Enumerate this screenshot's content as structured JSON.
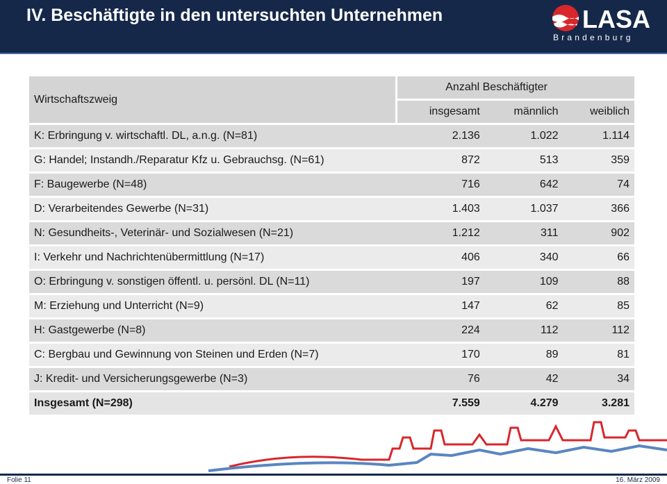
{
  "header": {
    "title": "IV. Beschäftigte in den untersuchten Unternehmen",
    "logo_text": "LASA",
    "logo_subtext": "Brandenburg"
  },
  "table": {
    "row_header": "Wirtschaftszweig",
    "group_header": "Anzahl Beschäftigter",
    "columns": [
      "insgesamt",
      "männlich",
      "weiblich"
    ],
    "rows": [
      [
        "K: Erbringung v. wirtschaftl. DL, a.n.g. (N=81)",
        "2.136",
        "1.022",
        "1.114"
      ],
      [
        "G: Handel; Instandh./Reparatur Kfz u. Gebrauchsg. (N=61)",
        "872",
        "513",
        "359"
      ],
      [
        "F: Baugewerbe (N=48)",
        "716",
        "642",
        "74"
      ],
      [
        "D: Verarbeitendes Gewerbe (N=31)",
        "1.403",
        "1.037",
        "366"
      ],
      [
        "N: Gesundheits-, Veterinär- und Sozialwesen (N=21)",
        "1.212",
        "311",
        "902"
      ],
      [
        "I: Verkehr und Nachrichtenübermittlung (N=17)",
        "406",
        "340",
        "66"
      ],
      [
        "O: Erbringung v. sonstigen öffentl. u. persönl. DL (N=11)",
        "197",
        "109",
        "88"
      ],
      [
        "M: Erziehung und Unterricht (N=9)",
        "147",
        "62",
        "85"
      ],
      [
        "H: Gastgewerbe (N=8)",
        "224",
        "112",
        "112"
      ],
      [
        "C: Bergbau und Gewinnung von Steinen und Erden (N=7)",
        "170",
        "89",
        "81"
      ],
      [
        "J: Kredit- und Versicherungsgewerbe (N=3)",
        "76",
        "42",
        "34"
      ]
    ],
    "total": [
      "Insgesamt (N=298)",
      "7.559",
      "4.279",
      "3.281"
    ]
  },
  "footer": {
    "slide": "Folie 11",
    "date": "16. März 2009"
  }
}
